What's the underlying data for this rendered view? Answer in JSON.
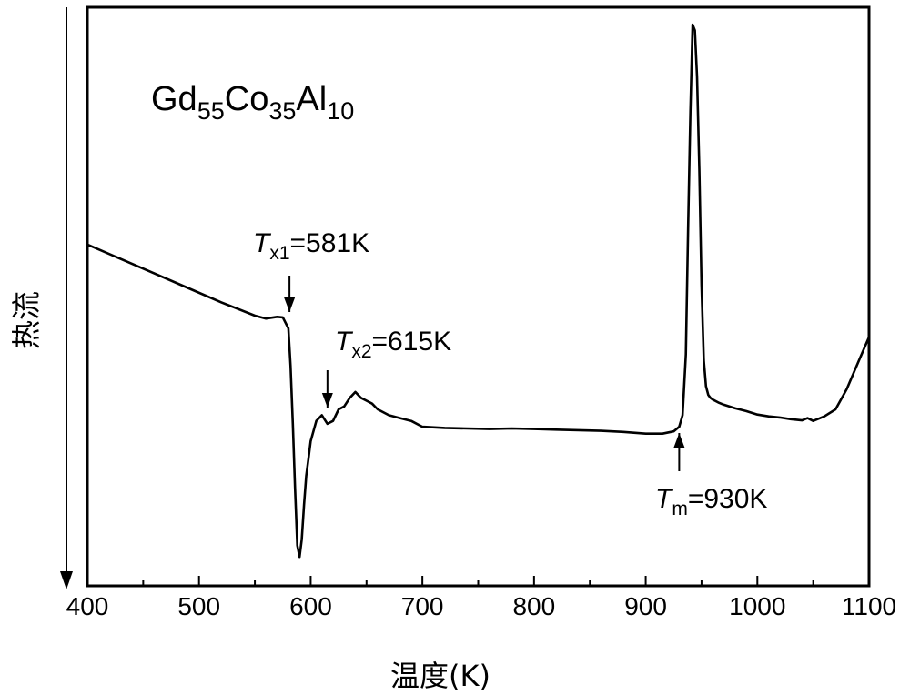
{
  "chart_data": {
    "type": "line",
    "title": "",
    "xlabel": "温度(K)",
    "ylabel": "热流",
    "xlim": [
      400,
      1100
    ],
    "ylim": [
      0,
      100
    ],
    "x_ticks": [
      400,
      500,
      600,
      700,
      800,
      900,
      1000,
      1100
    ],
    "y_ticks_shown": false,
    "grid": false,
    "series": [
      {
        "x": [
          400,
          430,
          460,
          490,
          520,
          550,
          560,
          570,
          575,
          580,
          582,
          584,
          586,
          588,
          590,
          592,
          594,
          596,
          598,
          600,
          605,
          610,
          615,
          620,
          625,
          630,
          635,
          640,
          645,
          650,
          655,
          660,
          670,
          680,
          690,
          700,
          720,
          740,
          760,
          780,
          800,
          820,
          840,
          860,
          880,
          900,
          915,
          925,
          930,
          933,
          936,
          938,
          940,
          942,
          944,
          946,
          948,
          950,
          952,
          954,
          956,
          958,
          960,
          962,
          965,
          970,
          980,
          990,
          1000,
          1010,
          1020,
          1030,
          1040,
          1045,
          1050,
          1055,
          1060,
          1070,
          1080,
          1090,
          1100
        ],
        "y": [
          59,
          56.5,
          54,
          51.5,
          49,
          46.7,
          46.2,
          46.5,
          46.4,
          44.5,
          38,
          28,
          17,
          7,
          5,
          8,
          14,
          19,
          22,
          25,
          28.5,
          29.5,
          28,
          28.5,
          30.5,
          31,
          32.5,
          33.5,
          32.5,
          32,
          31.5,
          30.5,
          29.5,
          29,
          28.5,
          27.5,
          27.3,
          27.2,
          27.1,
          27.2,
          27.1,
          27,
          26.9,
          26.8,
          26.6,
          26.3,
          26.3,
          26.7,
          27.5,
          29.5,
          40,
          62,
          82,
          97,
          96,
          88,
          72,
          52,
          39,
          34.5,
          33,
          32.5,
          32.2,
          32,
          31.7,
          31.3,
          30.7,
          30.2,
          29.6,
          29.3,
          29.1,
          28.8,
          28.6,
          29,
          28.5,
          28.9,
          29.3,
          30.5,
          34,
          38.5,
          43
        ]
      }
    ],
    "annotations": [
      {
        "id": "formula",
        "parts": [
          {
            "text": "Gd",
            "sub": false
          },
          {
            "text": "55",
            "sub": true
          },
          {
            "text": "Co",
            "sub": false
          },
          {
            "text": "35",
            "sub": true
          },
          {
            "text": "Al",
            "sub": false
          },
          {
            "text": "10",
            "sub": true
          }
        ]
      },
      {
        "id": "tx1",
        "symbol": "T",
        "subscript": "x1",
        "value": "=581K",
        "arrow_x": 581,
        "arrow_dir": "down"
      },
      {
        "id": "tx2",
        "symbol": "T",
        "subscript": "x2",
        "value": "=615K",
        "arrow_x": 615,
        "arrow_dir": "down"
      },
      {
        "id": "tm",
        "symbol": "T",
        "subscript": "m",
        "value": "=930K",
        "arrow_x": 930,
        "arrow_dir": "up"
      }
    ]
  }
}
